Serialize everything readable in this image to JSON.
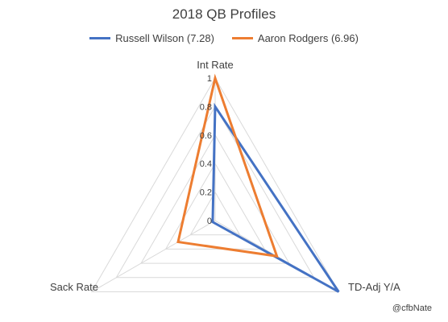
{
  "chart_data": {
    "type": "radar",
    "title": "2018 QB Profiles",
    "axes": [
      "Int Rate",
      "TD-Adj Y/A",
      "Sack Rate"
    ],
    "rlim": [
      0,
      1
    ],
    "ticks": [
      0,
      0.2,
      0.4,
      0.6,
      0.8,
      1
    ],
    "tick_labels": [
      "0",
      "0.2",
      "0.4",
      "0.6",
      "0.8",
      "1"
    ],
    "grid": true,
    "legend_position": "top",
    "series": [
      {
        "name": "Russell Wilson (7.28)",
        "color": "#4472C4",
        "values": [
          0.8,
          1.0,
          0.02
        ]
      },
      {
        "name": "Aaron Rodgers (6.96)",
        "color": "#ED7D31",
        "values": [
          1.0,
          0.5,
          0.3
        ]
      }
    ]
  },
  "credit": "@cfbNate",
  "grid_color": "#D9D9D9"
}
